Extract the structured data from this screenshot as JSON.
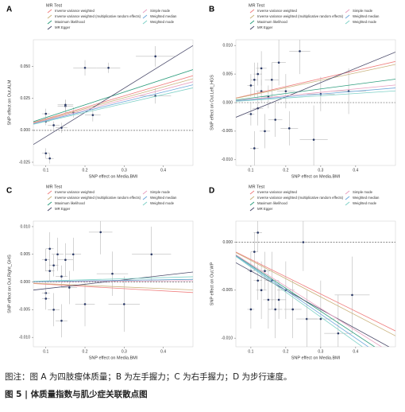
{
  "chart_data": [
    {
      "type": "scatter",
      "panel_label": "A",
      "legend_title": "MR Test",
      "x_label": "SNP effect on Media.BMI",
      "y_label": "SNP effect on Out.ALM",
      "xlim": [
        0.068,
        0.476
      ],
      "ylim": [
        -0.0275,
        0.071
      ],
      "xticks": [
        0.1,
        0.2,
        0.3,
        0.4
      ],
      "yticks": [
        {
          "value": -0.025,
          "label": "-0.025"
        },
        {
          "value": 0,
          "label": "0.000"
        },
        {
          "value": 0.025,
          "label": "0.025"
        },
        {
          "value": 0.05,
          "label": "0.050"
        }
      ],
      "hline": 0,
      "points": {
        "color": "#2b3a67",
        "x": [
          0.1,
          0.1,
          0.11,
          0.12,
          0.14,
          0.15,
          0.15,
          0.17,
          0.2,
          0.22,
          0.26,
          0.38,
          0.38,
          0.1
        ],
        "y": [
          0.013,
          -0.018,
          -0.022,
          0.004,
          0.002,
          0.019,
          0.02,
          0.014,
          0.049,
          0.012,
          0.049,
          0.058,
          0.027,
          0.007
        ],
        "xerr": [
          0.01,
          0.01,
          0.01,
          0.015,
          0.015,
          0.02,
          0.02,
          0.02,
          0.03,
          0.02,
          0.03,
          0.05,
          0.04,
          0.01
        ],
        "yerr": [
          0.004,
          0.004,
          0.004,
          0.003,
          0.004,
          0.005,
          0.004,
          0.004,
          0.006,
          0.005,
          0.004,
          0.008,
          0.006,
          0.003
        ]
      },
      "series": [
        {
          "name": "Inverse variance weighted",
          "color": "#f08080",
          "slope": 0.09,
          "intercept": 0
        },
        {
          "name": "Inverse variance weighted (multiplicative random effects)",
          "color": "#c9b27c",
          "slope": 0.085,
          "intercept": 0
        },
        {
          "name": "Maximum likelihood",
          "color": "#2e9e7e",
          "slope": 0.1,
          "intercept": 0
        },
        {
          "name": "MR Egger",
          "color": "#4a4a6a",
          "slope": 0.19,
          "intercept": -0.024
        },
        {
          "name": "Simple mode",
          "color": "#e8a0c0",
          "slope": 0.08,
          "intercept": 0
        },
        {
          "name": "Weighted median",
          "color": "#6fa8dc",
          "slope": 0.075,
          "intercept": 0
        },
        {
          "name": "Weighted mode",
          "color": "#7fd1c7",
          "slope": 0.07,
          "intercept": 0
        }
      ]
    },
    {
      "type": "scatter",
      "panel_label": "B",
      "legend_title": "MR Test",
      "x_label": "SNP effect on Media.BMI",
      "y_label": "SNP effect on Out.Left_HGS",
      "xlim": [
        0.057,
        0.514
      ],
      "ylim": [
        -0.011,
        0.011
      ],
      "xticks": [
        0.1,
        0.2,
        0.3,
        0.4
      ],
      "yticks": [
        {
          "value": -0.01,
          "label": "-0.010"
        },
        {
          "value": -0.005,
          "label": "-0.005"
        },
        {
          "value": 0,
          "label": "0.000"
        },
        {
          "value": 0.005,
          "label": "0.005"
        },
        {
          "value": 0.01,
          "label": "0.010"
        }
      ],
      "hline": 0,
      "points": {
        "color": "#2b3a67",
        "x": [
          0.1,
          0.1,
          0.11,
          0.11,
          0.12,
          0.12,
          0.13,
          0.13,
          0.14,
          0.15,
          0.16,
          0.17,
          0.18,
          0.2,
          0.21,
          0.24,
          0.28,
          0.3,
          0.38
        ],
        "y": [
          0.003,
          -0.002,
          0.004,
          -0.008,
          0.005,
          -0.001,
          0.002,
          0.006,
          -0.005,
          0.001,
          0.004,
          -0.003,
          0.007,
          0.002,
          -0.0045,
          0.009,
          -0.0065,
          0.0015,
          0.002
        ],
        "xerr": [
          0.01,
          0.01,
          0.01,
          0.012,
          0.012,
          0.015,
          0.015,
          0.015,
          0.015,
          0.02,
          0.02,
          0.02,
          0.02,
          0.025,
          0.025,
          0.03,
          0.04,
          0.04,
          0.05
        ],
        "yerr": [
          0.002,
          0.002,
          0.003,
          0.003,
          0.002,
          0.003,
          0.002,
          0.003,
          0.003,
          0.002,
          0.003,
          0.003,
          0.004,
          0.003,
          0.003,
          0.004,
          0.006,
          0.003,
          0.004
        ]
      },
      "series": [
        {
          "name": "Inverse variance weighted",
          "color": "#f08080",
          "slope": 0.014,
          "intercept": 0
        },
        {
          "name": "Inverse variance weighted (multiplicative random effects)",
          "color": "#c9b27c",
          "slope": 0.013,
          "intercept": 0
        },
        {
          "name": "Maximum likelihood",
          "color": "#2e9e7e",
          "slope": 0.008,
          "intercept": 0
        },
        {
          "name": "MR Egger",
          "color": "#4a4a6a",
          "slope": 0.025,
          "intercept": -0.004
        },
        {
          "name": "Simple mode",
          "color": "#e8a0c0",
          "slope": 0.006,
          "intercept": 0
        },
        {
          "name": "Weighted median",
          "color": "#6fa8dc",
          "slope": 0.005,
          "intercept": 0
        },
        {
          "name": "Weighted mode",
          "color": "#7fd1c7",
          "slope": 0.004,
          "intercept": 0
        }
      ]
    },
    {
      "type": "scatter",
      "panel_label": "C",
      "legend_title": "MR Test",
      "x_label": "SNP effect on Media.BMI",
      "y_label": "SNP effect on Out.Right_GHS",
      "xlim": [
        0.068,
        0.476
      ],
      "ylim": [
        -0.0117,
        0.011
      ],
      "xticks": [
        0.1,
        0.2,
        0.3,
        0.4
      ],
      "yticks": [
        {
          "value": -0.01,
          "label": "-0.010"
        },
        {
          "value": -0.005,
          "label": "-0.005"
        },
        {
          "value": 0,
          "label": "0.000"
        },
        {
          "value": 0.005,
          "label": "0.005"
        },
        {
          "value": 0.01,
          "label": "0.010"
        }
      ],
      "hline": 0,
      "points": {
        "color": "#2b3a67",
        "x": [
          0.1,
          0.1,
          0.11,
          0.11,
          0.12,
          0.12,
          0.13,
          0.14,
          0.14,
          0.15,
          0.16,
          0.17,
          0.2,
          0.24,
          0.27,
          0.3,
          0.37,
          0.1
        ],
        "y": [
          0.004,
          -0.002,
          0.006,
          0.002,
          0.003,
          -0.005,
          0.005,
          -0.007,
          0.001,
          0.004,
          -0.001,
          0.005,
          -0.004,
          0.009,
          0.0015,
          -0.004,
          0.005,
          -0.003
        ],
        "xerr": [
          0.01,
          0.01,
          0.01,
          0.012,
          0.012,
          0.015,
          0.015,
          0.015,
          0.015,
          0.02,
          0.02,
          0.02,
          0.025,
          0.03,
          0.04,
          0.04,
          0.05,
          0.01
        ],
        "yerr": [
          0.002,
          0.002,
          0.003,
          0.002,
          0.002,
          0.003,
          0.003,
          0.003,
          0.002,
          0.003,
          0.003,
          0.003,
          0.004,
          0.004,
          0.004,
          0.005,
          0.005,
          0.002
        ]
      },
      "series": [
        {
          "name": "Inverse variance weighted",
          "color": "#f08080",
          "slope": -0.004,
          "intercept": 0
        },
        {
          "name": "Inverse variance weighted (multiplicative random effects)",
          "color": "#c9b27c",
          "slope": -0.003,
          "intercept": 0
        },
        {
          "name": "Maximum likelihood",
          "color": "#2e9e7e",
          "slope": 0.001,
          "intercept": 0
        },
        {
          "name": "MR Egger",
          "color": "#4a4a6a",
          "slope": 0.008,
          "intercept": -0.002
        },
        {
          "name": "Simple mode",
          "color": "#e8a0c0",
          "slope": 0.0005,
          "intercept": 0
        },
        {
          "name": "Weighted median",
          "color": "#6fa8dc",
          "slope": 0.001,
          "intercept": 0
        },
        {
          "name": "Weighted mode",
          "color": "#7fd1c7",
          "slope": 0.002,
          "intercept": 0
        }
      ]
    },
    {
      "type": "scatter",
      "panel_label": "D",
      "legend_title": "MR Test",
      "x_label": "SNP effect on Media.BMI",
      "y_label": "SNP effect on Out.WP",
      "xlim": [
        0.057,
        0.514
      ],
      "ylim": [
        -0.0109,
        0.0022
      ],
      "xticks": [
        0.1,
        0.2,
        0.3,
        0.4
      ],
      "yticks": [
        {
          "value": -0.01,
          "label": "-0.010"
        },
        {
          "value": -0.005,
          "label": "-0.005"
        },
        {
          "value": 0,
          "label": "0.000"
        }
      ],
      "hline": 0,
      "points": {
        "color": "#2b3a67",
        "x": [
          0.1,
          0.11,
          0.12,
          0.12,
          0.13,
          0.14,
          0.15,
          0.16,
          0.17,
          0.18,
          0.2,
          0.22,
          0.25,
          0.26,
          0.3,
          0.35,
          0.39,
          0.1
        ],
        "y": [
          -0.003,
          -0.001,
          0.001,
          -0.004,
          -0.005,
          -0.003,
          -0.006,
          -0.004,
          -0.007,
          -0.006,
          -0.005,
          -0.007,
          0,
          -0.008,
          -0.008,
          -0.0095,
          -0.0055,
          -0.007
        ],
        "xerr": [
          0.01,
          0.01,
          0.012,
          0.012,
          0.015,
          0.015,
          0.015,
          0.02,
          0.02,
          0.02,
          0.025,
          0.025,
          0.03,
          0.03,
          0.04,
          0.04,
          0.05,
          0.01
        ],
        "yerr": [
          0.002,
          0.002,
          0.002,
          0.002,
          0.003,
          0.002,
          0.003,
          0.003,
          0.003,
          0.002,
          0.003,
          0.003,
          0.003,
          0.003,
          0.004,
          0.004,
          0.004,
          0.002
        ]
      },
      "series": [
        {
          "name": "Inverse variance weighted",
          "color": "#f08080",
          "slope": -0.018,
          "intercept": 0
        },
        {
          "name": "Inverse variance weighted (multiplicative random effects)",
          "color": "#c9b27c",
          "slope": -0.019,
          "intercept": 0
        },
        {
          "name": "Maximum likelihood",
          "color": "#2e9e7e",
          "slope": -0.024,
          "intercept": 0
        },
        {
          "name": "MR Egger",
          "color": "#4a4a6a",
          "slope": -0.02,
          "intercept": -0.001
        },
        {
          "name": "Simple mode",
          "color": "#e8a0c0",
          "slope": -0.023,
          "intercept": 0
        },
        {
          "name": "Weighted median",
          "color": "#6fa8dc",
          "slope": -0.025,
          "intercept": 0
        },
        {
          "name": "Weighted mode",
          "color": "#7fd1c7",
          "slope": -0.026,
          "intercept": 0
        }
      ]
    }
  ],
  "caption": {
    "note": "图注：图 A 为四肢瘦体质量；B 为左手握力；C 为右手握力；D 为步行速度。",
    "title": "图 5 | 体质量指数与肌少症关联散点图"
  }
}
